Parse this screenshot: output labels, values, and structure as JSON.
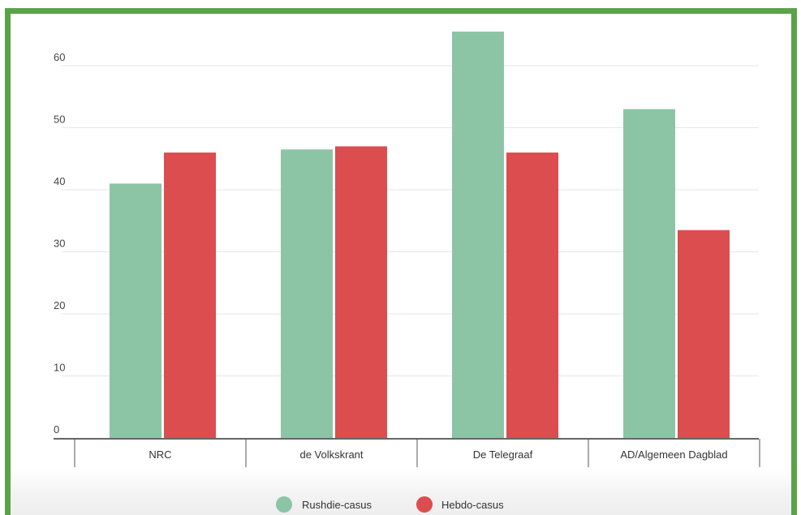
{
  "chart_data": {
    "type": "bar",
    "categories": [
      "NRC",
      "de Volkskrant",
      "De Telegraaf",
      "AD/Algemeen Dagblad"
    ],
    "series": [
      {
        "name": "Rushdie-casus",
        "color": "#8cc4a6",
        "values": [
          41,
          46.5,
          65.5,
          53
        ]
      },
      {
        "name": "Hebdo-casus",
        "color": "#dc4d4f",
        "values": [
          46,
          47,
          46,
          33.5
        ]
      }
    ],
    "yticks": [
      0,
      10,
      20,
      30,
      40,
      50,
      60
    ],
    "ylim": [
      0,
      65.5
    ],
    "grid": true,
    "legend_position": "bottom",
    "title": "",
    "xlabel": "",
    "ylabel": ""
  },
  "frame_color": "#5aa348"
}
